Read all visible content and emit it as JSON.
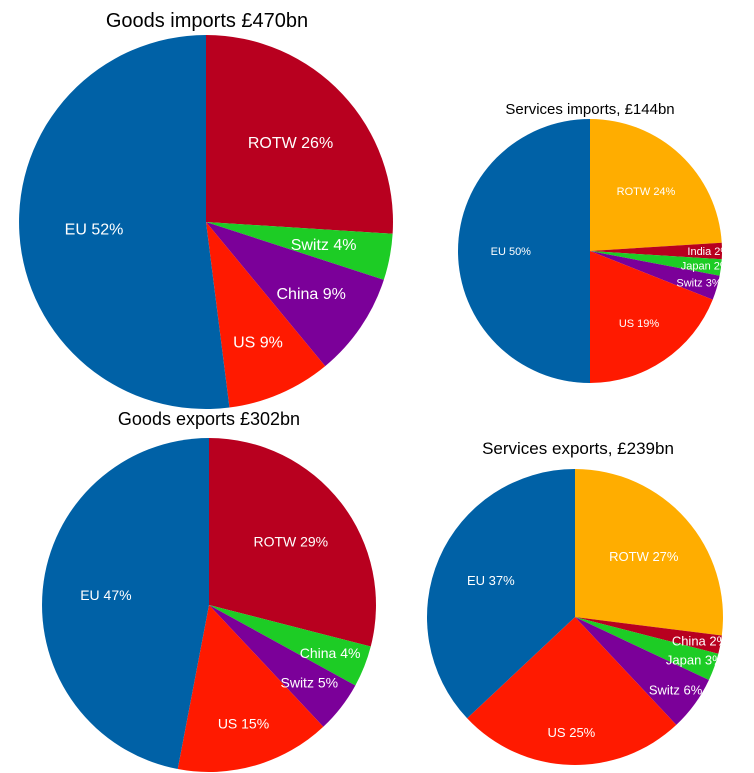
{
  "colors": {
    "EU": "#0061a6",
    "ROTW_goods": "#b8001f",
    "ROTW_services": "#ffad00",
    "Switz": "#7b0099",
    "Switz_goods_imports": "#1dcc25",
    "China": "#7b0099",
    "China_goods_exports": "#1dcc25",
    "China_services_exports": "#b8001f",
    "US": "#ff1a00",
    "India": "#b8001f",
    "Japan": "#1dcc25"
  },
  "chart_data": [
    {
      "type": "pie",
      "title": "Goods imports £470bn",
      "slices": [
        {
          "name": "ROTW",
          "value": 26,
          "label": "ROTW 26%",
          "color": "#b8001f"
        },
        {
          "name": "Switz",
          "value": 4,
          "label": "Switz 4%",
          "color": "#1dcc25"
        },
        {
          "name": "China",
          "value": 9,
          "label": "China 9%",
          "color": "#7b0099"
        },
        {
          "name": "US",
          "value": 9,
          "label": "US 9%",
          "color": "#ff1a00"
        },
        {
          "name": "EU",
          "value": 52,
          "label": "EU 52%",
          "color": "#0061a6"
        }
      ]
    },
    {
      "type": "pie",
      "title": "Services imports, £144bn",
      "slices": [
        {
          "name": "ROTW",
          "value": 24,
          "label": "ROTW 24%",
          "color": "#ffad00"
        },
        {
          "name": "India",
          "value": 2,
          "label": "India 2%",
          "color": "#b8001f"
        },
        {
          "name": "Japan",
          "value": 2,
          "label": "Japan 2%",
          "color": "#1dcc25"
        },
        {
          "name": "Switz",
          "value": 3,
          "label": "Switz 3%",
          "color": "#7b0099"
        },
        {
          "name": "US",
          "value": 19,
          "label": "US 19%",
          "color": "#ff1a00"
        },
        {
          "name": "EU",
          "value": 50,
          "label": "EU 50%",
          "color": "#0061a6"
        }
      ]
    },
    {
      "type": "pie",
      "title": "Goods exports £302bn",
      "slices": [
        {
          "name": "ROTW",
          "value": 29,
          "label": "ROTW 29%",
          "color": "#b8001f"
        },
        {
          "name": "China",
          "value": 4,
          "label": "China 4%",
          "color": "#1dcc25"
        },
        {
          "name": "Switz",
          "value": 5,
          "label": "Switz 5%",
          "color": "#7b0099"
        },
        {
          "name": "US",
          "value": 15,
          "label": "US 15%",
          "color": "#ff1a00"
        },
        {
          "name": "EU",
          "value": 47,
          "label": "EU 47%",
          "color": "#0061a6"
        }
      ]
    },
    {
      "type": "pie",
      "title": "Services exports, £239bn",
      "slices": [
        {
          "name": "ROTW",
          "value": 27,
          "label": "ROTW 27%",
          "color": "#ffad00"
        },
        {
          "name": "China",
          "value": 2,
          "label": "China 2%",
          "color": "#b8001f"
        },
        {
          "name": "Japan",
          "value": 3,
          "label": "Japan 3%",
          "color": "#1dcc25"
        },
        {
          "name": "Switz",
          "value": 6,
          "label": "Switz 6%",
          "color": "#7b0099"
        },
        {
          "name": "US",
          "value": 25,
          "label": "US 25%",
          "color": "#ff1a00"
        },
        {
          "name": "EU",
          "value": 37,
          "label": "EU 37%",
          "color": "#0061a6"
        }
      ]
    }
  ]
}
